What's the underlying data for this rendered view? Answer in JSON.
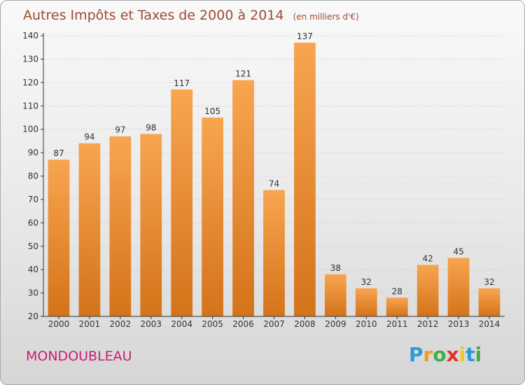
{
  "title": "Autres Impôts et Taxes de 2000 à 2014",
  "subtitle": "(en milliers d'€)",
  "location": "MONDOUBLEAU",
  "logo": {
    "text": "Proxiti",
    "letters": [
      {
        "char": "P",
        "color": "#2b9bd8"
      },
      {
        "char": "r",
        "color": "#f29a1f"
      },
      {
        "char": "o",
        "color": "#3fae49"
      },
      {
        "char": "x",
        "color": "#e32f2f"
      },
      {
        "char": "i",
        "color": "#f2c81a"
      },
      {
        "char": "t",
        "color": "#2b9bd8"
      },
      {
        "char": "i",
        "color": "#3fae49"
      }
    ]
  },
  "colors": {
    "bar_light": "#f8a550",
    "bar_dark": "#d4731a",
    "grid": "#c8c8c8",
    "axis": "#333333"
  },
  "chart_data": {
    "type": "bar",
    "title": "Autres Impôts et Taxes de 2000 à 2014",
    "subtitle": "(en milliers d'€)",
    "xlabel": "",
    "ylabel": "",
    "categories": [
      "2000",
      "2001",
      "2002",
      "2003",
      "2004",
      "2005",
      "2006",
      "2007",
      "2008",
      "2009",
      "2010",
      "2011",
      "2012",
      "2013",
      "2014"
    ],
    "values": [
      87,
      94,
      97,
      98,
      117,
      105,
      121,
      74,
      137,
      38,
      32,
      28,
      42,
      45,
      32
    ],
    "ylim": [
      20,
      140
    ],
    "yticks": [
      20,
      30,
      40,
      50,
      60,
      70,
      80,
      90,
      100,
      110,
      120,
      130,
      140
    ],
    "grid": true,
    "legend": "none"
  }
}
